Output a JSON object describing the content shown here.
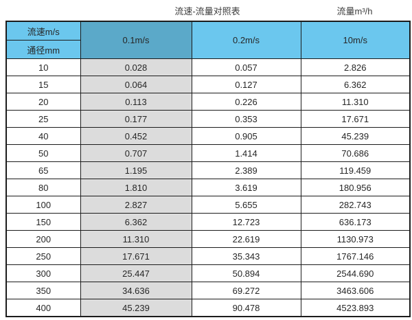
{
  "titles": {
    "main": "流速-流量对照表",
    "right_unit": "流量m³/h"
  },
  "table": {
    "corner_top": "流速m/s",
    "corner_bottom": "通径mm",
    "speed_columns": [
      "0.1m/s",
      "0.2m/s",
      "10m/s"
    ],
    "rows": [
      {
        "dn": "10",
        "values": [
          "0.028",
          "0.057",
          "2.826"
        ]
      },
      {
        "dn": "15",
        "values": [
          "0.064",
          "0.127",
          "6.362"
        ]
      },
      {
        "dn": "20",
        "values": [
          "0.113",
          "0.226",
          "11.310"
        ]
      },
      {
        "dn": "25",
        "values": [
          "0.177",
          "0.353",
          "17.671"
        ]
      },
      {
        "dn": "40",
        "values": [
          "0.452",
          "0.905",
          "45.239"
        ]
      },
      {
        "dn": "50",
        "values": [
          "0.707",
          "1.414",
          "70.686"
        ]
      },
      {
        "dn": "65",
        "values": [
          "1.195",
          "2.389",
          "119.459"
        ]
      },
      {
        "dn": "80",
        "values": [
          "1.810",
          "3.619",
          "180.956"
        ]
      },
      {
        "dn": "100",
        "values": [
          "2.827",
          "5.655",
          "282.743"
        ]
      },
      {
        "dn": "150",
        "values": [
          "6.362",
          "12.723",
          "636.173"
        ]
      },
      {
        "dn": "200",
        "values": [
          "11.310",
          "22.619",
          "1130.973"
        ]
      },
      {
        "dn": "250",
        "values": [
          "17.671",
          "35.343",
          "1767.146"
        ]
      },
      {
        "dn": "300",
        "values": [
          "25.447",
          "50.894",
          "2544.690"
        ]
      },
      {
        "dn": "350",
        "values": [
          "34.636",
          "69.272",
          "3463.606"
        ]
      },
      {
        "dn": "400",
        "values": [
          "45.239",
          "90.478",
          "4523.893"
        ]
      }
    ]
  },
  "colors": {
    "header_blue": "#6bc7ee",
    "header_dark_blue": "#5ba9c9",
    "gray_column": "#dcdcdc",
    "border": "#1b1b1b",
    "text": "#262626"
  },
  "chart_data": {
    "type": "table",
    "title": "流速-流量对照表",
    "unit_label": "流量m³/h",
    "columns": [
      "通径mm",
      "0.1m/s",
      "0.2m/s",
      "10m/s"
    ],
    "rows": [
      [
        10,
        0.028,
        0.057,
        2.826
      ],
      [
        15,
        0.064,
        0.127,
        6.362
      ],
      [
        20,
        0.113,
        0.226,
        11.31
      ],
      [
        25,
        0.177,
        0.353,
        17.671
      ],
      [
        40,
        0.452,
        0.905,
        45.239
      ],
      [
        50,
        0.707,
        1.414,
        70.686
      ],
      [
        65,
        1.195,
        2.389,
        119.459
      ],
      [
        80,
        1.81,
        3.619,
        180.956
      ],
      [
        100,
        2.827,
        5.655,
        282.743
      ],
      [
        150,
        6.362,
        12.723,
        636.173
      ],
      [
        200,
        11.31,
        22.619,
        1130.973
      ],
      [
        250,
        17.671,
        35.343,
        1767.146
      ],
      [
        300,
        25.447,
        50.894,
        2544.69
      ],
      [
        350,
        34.636,
        69.272,
        3463.606
      ],
      [
        400,
        45.239,
        90.478,
        4523.893
      ]
    ]
  }
}
